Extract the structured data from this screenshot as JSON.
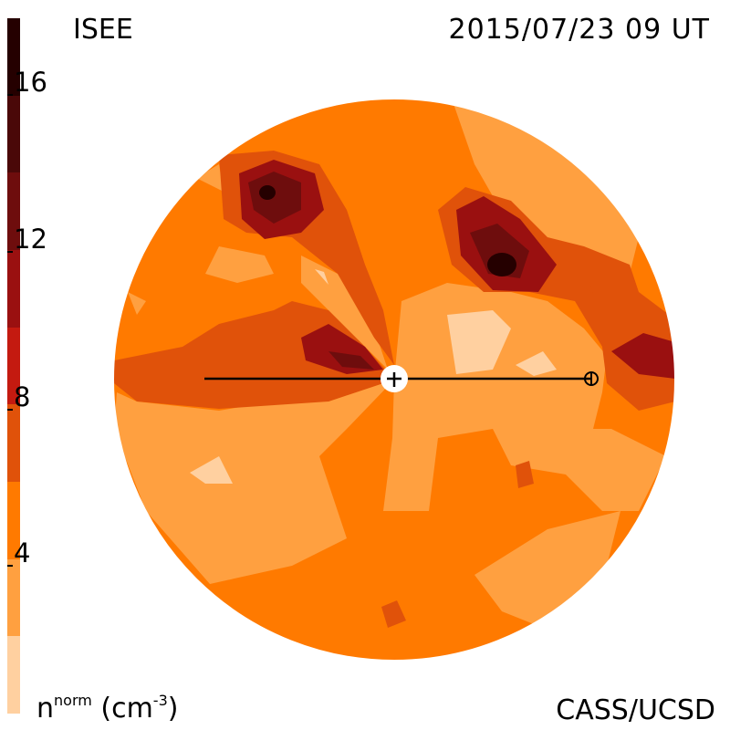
{
  "header": {
    "source": "ISEE",
    "datetime": "2015/07/23 09 UT"
  },
  "footer": {
    "credit": "CASS/UCSD",
    "unit_base": "n",
    "unit_super": "norm",
    "unit_paren_open": " (cm",
    "unit_exp": "-3",
    "unit_paren_close": ")"
  },
  "colorbar": {
    "ticks": [
      "16",
      "12",
      "8",
      "4"
    ],
    "colors": [
      "#250000",
      "#4a0808",
      "#6e0d0d",
      "#9a1010",
      "#c41a10",
      "#e0520a",
      "#ff7a00",
      "#ffa040",
      "#ffd0a0"
    ]
  },
  "map": {
    "background_color": "#ff7a00",
    "light_color": "#ffa040",
    "pale_color": "#ffd0a0",
    "red_color": "#e0520a",
    "dark_color": "#9a1010",
    "darker_color": "#6e0d0d",
    "darkest_color": "#250000"
  }
}
